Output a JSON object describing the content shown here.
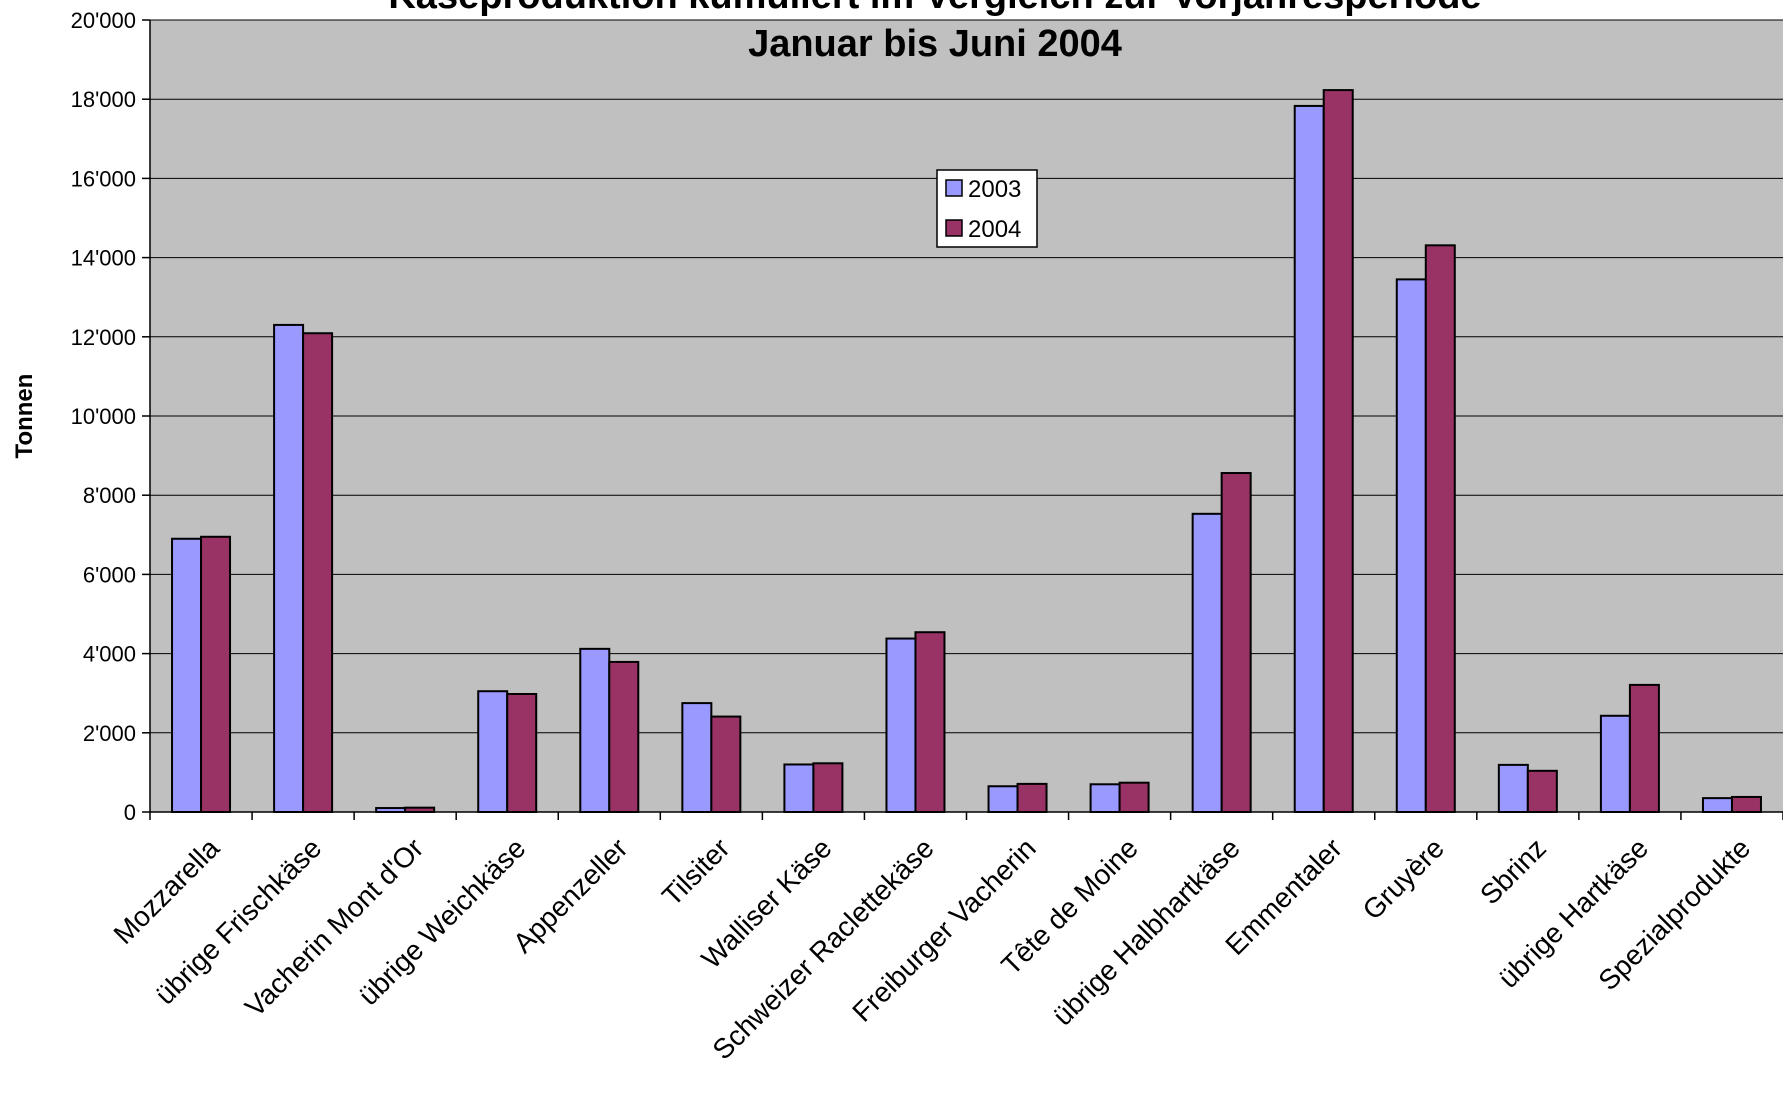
{
  "chart_data": {
    "type": "bar",
    "title_line1": "Käseproduktion kumuliert im Vergleich zur Vorjahresperiode",
    "title_line2": "Januar bis Juni 2004",
    "xlabel": "",
    "ylabel": "Tonnen",
    "ylim": [
      0,
      20000
    ],
    "yticks": [
      "0",
      "2'000",
      "4'000",
      "6'000",
      "8'000",
      "10'000",
      "12'000",
      "14'000",
      "16'000",
      "18'000",
      "20'000"
    ],
    "grid": true,
    "legend_position": "center-top",
    "categories": [
      "Mozzarella",
      "übrige Frischkäse",
      "Vacherin Mont d'Or",
      "übrige Weichkäse",
      "Appenzeller",
      "Tilsiter",
      "Walliser Käse",
      "Schweizer Raclettekäse",
      "Freiburger Vacherin",
      "Tête de Moine",
      "übrige Halbhartkäse",
      "Emmentaler",
      "Gruyère",
      "Sbrinz",
      "übrige Hartkäse",
      "Spezialprodukte"
    ],
    "series": [
      {
        "name": "2003",
        "color": "#9999ff",
        "values": [
          6900,
          12300,
          100,
          3050,
          4120,
          2750,
          1200,
          4380,
          650,
          700,
          7530,
          17830,
          13450,
          1190,
          2430,
          350
        ]
      },
      {
        "name": "2004",
        "color": "#993366",
        "values": [
          6950,
          12090,
          110,
          2980,
          3790,
          2410,
          1230,
          4540,
          710,
          740,
          8560,
          18230,
          14310,
          1040,
          3210,
          380
        ]
      }
    ]
  },
  "colors": {
    "plot_background": "#c0c0c0",
    "gridline": "#000000"
  }
}
